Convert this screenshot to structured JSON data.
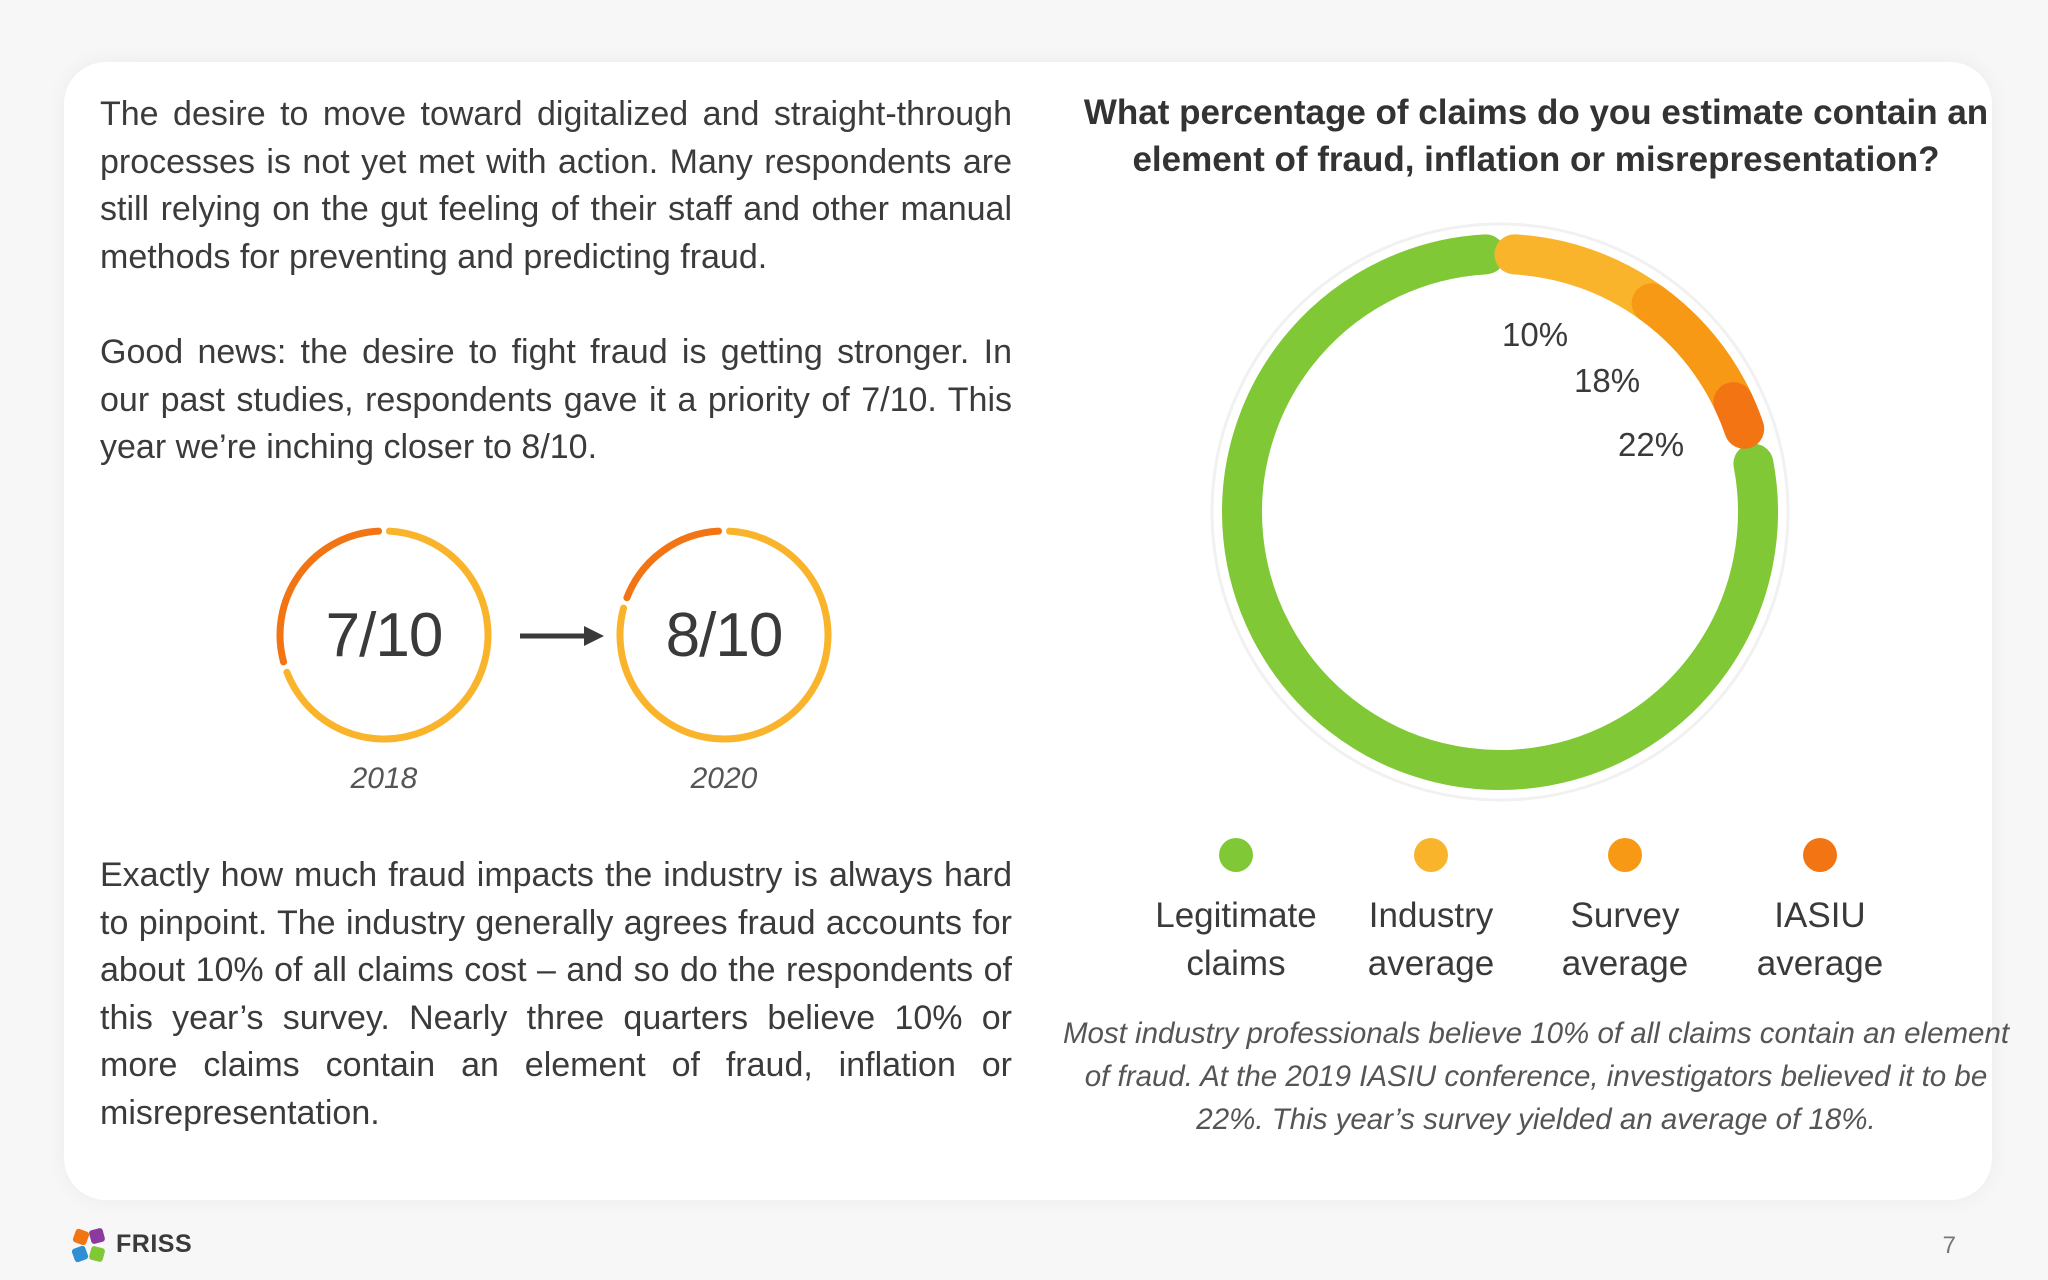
{
  "body_text": {
    "p1": "The desire to move toward digitalized and straight-through processes is not yet met with action. Many respondents are still relying on the gut feeling of their staff and other manual methods for preventing and predicting fraud.",
    "p2": "Good news: the desire to fight fraud is getting stronger. In our past studies, respondents gave it a priority of 7/10. This year we’re inching closer to 8/10.",
    "p3": "Exactly how much fraud impacts the industry is always hard to pinpoint. The industry generally agrees fraud accounts for about 10% of all claims cost – and so do the respondents of this year’s survey. Nearly three quarters believe 10% or more claims contain an element of fraud, inflation or misrepresentation."
  },
  "priority": {
    "before": {
      "label": "7/10",
      "score": 7,
      "max": 10,
      "year": "2018"
    },
    "after": {
      "label": "8/10",
      "score": 8,
      "max": 10,
      "year": "2020"
    }
  },
  "chart_data": {
    "type": "pie",
    "title": "What percentage of claims do you estimate contain an element of fraud, inflation or misrepresentation?",
    "segments": [
      {
        "name": "Legitimate claims",
        "value": 78,
        "label": "",
        "color": "#80c836"
      },
      {
        "name": "Industry average",
        "value": 10,
        "label": "10%",
        "color": "#f9b42b"
      },
      {
        "name": "Survey average",
        "value": 8,
        "label": "18%",
        "color": "#f79914"
      },
      {
        "name": "IASIU average",
        "value": 4,
        "label": "22%",
        "color": "#f27413"
      }
    ],
    "legend_lines": [
      [
        "Legitimate",
        "claims"
      ],
      [
        "Industry",
        "average"
      ],
      [
        "Survey",
        "average"
      ],
      [
        "IASIU",
        "average"
      ]
    ],
    "legend_placement": "bottom"
  },
  "note": "Most industry professionals believe 10% of all claims contain an element of fraud. At the 2019 IASIU conference, investigators believed it to be 22%. This year’s survey yielded an average of 18%.",
  "footer": {
    "brand": "FRISS",
    "page_number": "7"
  },
  "colors": {
    "green": "#80c836",
    "yellow": "#f9b42b",
    "orange": "#f79914",
    "dark_orange": "#f27413"
  }
}
